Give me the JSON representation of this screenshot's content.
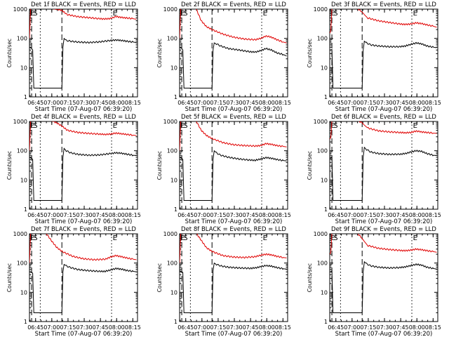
{
  "figure": {
    "x_label": "Start Time (07-Aug-07 06:39:20)",
    "y_label": "Counts/sec",
    "x_ticks": [
      "06:45",
      "07:00",
      "07:15",
      "07:30",
      "07:45",
      "08:00",
      "08:15"
    ],
    "y_ticks": [
      "1",
      "10",
      "100",
      "1000"
    ],
    "markers": [
      "E",
      "S",
      "E"
    ],
    "colors": {
      "events": "#000000",
      "lld": "#e00000",
      "axes": "#000000"
    }
  },
  "chart_data": [
    {
      "type": "line",
      "title": "Det 1f BLACK = Events, RED = LLD",
      "xlabel": "Start Time (07-Aug-07 06:39:20)",
      "ylabel": "Counts/sec",
      "xlim": [
        0,
        100
      ],
      "ylim": [
        1,
        1000
      ],
      "yscale": "log",
      "dashed_lines_min": [
        2,
        30
      ],
      "dotted_lines_min": [
        10,
        76
      ],
      "series": [
        {
          "name": "Events",
          "x": [
            0,
            2,
            3,
            4,
            30,
            31,
            32,
            34,
            38,
            45,
            55,
            65,
            75,
            80,
            85,
            90,
            96,
            99
          ],
          "y": [
            50,
            45,
            40,
            2,
            2,
            50,
            100,
            85,
            80,
            75,
            72,
            76,
            85,
            88,
            85,
            80,
            75,
            72
          ]
        },
        {
          "name": "LLD",
          "x": [
            0,
            1,
            2,
            3,
            20,
            25,
            30,
            35,
            45,
            55,
            65,
            70,
            75,
            80,
            85,
            90,
            96,
            99
          ],
          "y": [
            100,
            1000,
            1100,
            1100,
            1100,
            1000,
            900,
            650,
            550,
            510,
            470,
            460,
            480,
            560,
            520,
            500,
            470,
            450
          ]
        }
      ]
    },
    {
      "type": "line",
      "title": "Det 2f BLACK = Events, RED = LLD",
      "xlabel": "Start Time (07-Aug-07 06:39:20)",
      "ylabel": "Counts/sec",
      "xlim": [
        0,
        100
      ],
      "ylim": [
        1,
        1000
      ],
      "yscale": "log",
      "dashed_lines_min": [
        2,
        30
      ],
      "dotted_lines_min": [
        10,
        76
      ],
      "series": [
        {
          "name": "Events",
          "x": [
            0,
            2,
            3,
            4,
            30,
            31,
            32,
            34,
            38,
            45,
            55,
            65,
            70,
            75,
            80,
            85,
            90,
            96,
            99
          ],
          "y": [
            50,
            45,
            40,
            2,
            2,
            40,
            70,
            65,
            55,
            45,
            40,
            35,
            34,
            38,
            45,
            40,
            32,
            28,
            25
          ]
        },
        {
          "name": "LLD",
          "x": [
            0,
            1,
            2,
            3,
            15,
            20,
            25,
            30,
            40,
            50,
            60,
            70,
            75,
            80,
            85,
            90,
            96,
            99
          ],
          "y": [
            100,
            1000,
            1100,
            1100,
            1100,
            400,
            250,
            200,
            140,
            110,
            95,
            90,
            100,
            120,
            110,
            90,
            75,
            70
          ]
        }
      ]
    },
    {
      "type": "line",
      "title": "Det 3f BLACK = Events, RED = LLD",
      "xlabel": "Start Time (07-Aug-07 06:39:20)",
      "ylabel": "Counts/sec",
      "xlim": [
        0,
        100
      ],
      "ylim": [
        1,
        1000
      ],
      "yscale": "log",
      "dashed_lines_min": [
        2,
        30
      ],
      "dotted_lines_min": [
        10,
        76
      ],
      "series": [
        {
          "name": "Events",
          "x": [
            0,
            1,
            2,
            3,
            30,
            31,
            32,
            34,
            38,
            45,
            55,
            65,
            70,
            75,
            80,
            85,
            90,
            96,
            99
          ],
          "y": [
            40,
            40,
            42,
            2,
            2,
            40,
            80,
            70,
            60,
            55,
            52,
            52,
            55,
            62,
            70,
            65,
            55,
            50,
            48
          ]
        },
        {
          "name": "LLD",
          "x": [
            0,
            1,
            2,
            3,
            25,
            30,
            32,
            35,
            45,
            55,
            65,
            70,
            75,
            80,
            85,
            90,
            96,
            99
          ],
          "y": [
            150,
            180,
            1100,
            1100,
            1100,
            800,
            650,
            500,
            400,
            350,
            310,
            300,
            310,
            340,
            320,
            290,
            260,
            240
          ]
        }
      ]
    },
    {
      "type": "line",
      "title": "Det 4f BLACK = Events, RED = LLD",
      "xlabel": "Start Time (07-Aug-07 06:39:20)",
      "ylabel": "Counts/sec",
      "xlim": [
        0,
        100
      ],
      "ylim": [
        1,
        1000
      ],
      "yscale": "log",
      "dashed_lines_min": [
        2,
        30
      ],
      "dotted_lines_min": [
        10,
        76
      ],
      "series": [
        {
          "name": "Events",
          "x": [
            0,
            2,
            3,
            4,
            30,
            31,
            32,
            34,
            38,
            45,
            55,
            65,
            75,
            80,
            85,
            90,
            96,
            99
          ],
          "y": [
            60,
            55,
            50,
            2,
            2,
            60,
            120,
            100,
            85,
            75,
            70,
            72,
            80,
            85,
            82,
            76,
            70,
            68
          ]
        },
        {
          "name": "LLD",
          "x": [
            0,
            1,
            2,
            3,
            20,
            25,
            30,
            35,
            45,
            55,
            65,
            70,
            75,
            80,
            85,
            90,
            96,
            99
          ],
          "y": [
            100,
            1000,
            1100,
            1100,
            1100,
            900,
            700,
            500,
            420,
            390,
            370,
            360,
            370,
            400,
            380,
            360,
            340,
            330
          ]
        }
      ]
    },
    {
      "type": "line",
      "title": "Det 5f BLACK = Events, RED = LLD",
      "xlabel": "Start Time (07-Aug-07 06:39:20)",
      "ylabel": "Counts/sec",
      "xlim": [
        0,
        100
      ],
      "ylim": [
        1,
        1000
      ],
      "yscale": "log",
      "dashed_lines_min": [
        2,
        30
      ],
      "dotted_lines_min": [
        10,
        76
      ],
      "series": [
        {
          "name": "Events",
          "x": [
            0,
            2,
            3,
            4,
            30,
            31,
            32,
            34,
            38,
            45,
            55,
            65,
            70,
            75,
            80,
            85,
            90,
            96,
            99
          ],
          "y": [
            60,
            55,
            50,
            2,
            2,
            50,
            100,
            85,
            70,
            60,
            52,
            48,
            47,
            52,
            58,
            55,
            50,
            46,
            45
          ]
        },
        {
          "name": "LLD",
          "x": [
            0,
            1,
            2,
            3,
            15,
            20,
            25,
            30,
            40,
            50,
            60,
            70,
            75,
            80,
            85,
            90,
            96,
            99
          ],
          "y": [
            100,
            1000,
            1100,
            1100,
            1100,
            500,
            330,
            260,
            190,
            160,
            150,
            145,
            150,
            175,
            165,
            150,
            140,
            135
          ]
        }
      ]
    },
    {
      "type": "line",
      "title": "Det 6f BLACK = Events, RED = LLD",
      "xlabel": "Start Time (07-Aug-07 06:39:20)",
      "ylabel": "Counts/sec",
      "xlim": [
        0,
        100
      ],
      "ylim": [
        1,
        1000
      ],
      "yscale": "log",
      "dashed_lines_min": [
        2,
        30
      ],
      "dotted_lines_min": [
        10,
        76
      ],
      "series": [
        {
          "name": "Events",
          "x": [
            0,
            1,
            2,
            3,
            30,
            31,
            32,
            34,
            38,
            45,
            55,
            65,
            70,
            75,
            80,
            85,
            90,
            96,
            99
          ],
          "y": [
            55,
            55,
            60,
            2,
            2,
            60,
            130,
            110,
            90,
            80,
            75,
            76,
            80,
            90,
            100,
            95,
            80,
            70,
            68
          ]
        },
        {
          "name": "LLD",
          "x": [
            0,
            1,
            2,
            3,
            25,
            30,
            32,
            35,
            45,
            55,
            65,
            70,
            75,
            80,
            85,
            90,
            96,
            99
          ],
          "y": [
            250,
            280,
            1100,
            1100,
            1100,
            900,
            750,
            600,
            480,
            440,
            420,
            410,
            420,
            470,
            440,
            420,
            400,
            390
          ]
        }
      ]
    },
    {
      "type": "line",
      "title": "Det 7f BLACK = Events, RED = LLD",
      "xlabel": "Start Time (07-Aug-07 06:39:20)",
      "ylabel": "Counts/sec",
      "xlim": [
        0,
        100
      ],
      "ylim": [
        1,
        1000
      ],
      "yscale": "log",
      "dashed_lines_min": [
        2,
        30
      ],
      "dotted_lines_min": [
        10,
        76
      ],
      "series": [
        {
          "name": "Events",
          "x": [
            0,
            2,
            3,
            4,
            30,
            31,
            32,
            34,
            38,
            45,
            55,
            65,
            70,
            75,
            80,
            85,
            90,
            96,
            99
          ],
          "y": [
            50,
            48,
            45,
            2,
            2,
            50,
            90,
            80,
            70,
            60,
            55,
            52,
            52,
            58,
            65,
            62,
            56,
            52,
            50
          ]
        },
        {
          "name": "LLD",
          "x": [
            0,
            1,
            2,
            3,
            15,
            20,
            25,
            30,
            40,
            50,
            60,
            70,
            75,
            80,
            85,
            90,
            96,
            99
          ],
          "y": [
            100,
            1000,
            1100,
            1100,
            1100,
            600,
            350,
            250,
            170,
            140,
            130,
            135,
            160,
            180,
            165,
            150,
            135,
            130
          ]
        }
      ]
    },
    {
      "type": "line",
      "title": "Det 8f BLACK = Events, RED = LLD",
      "xlabel": "Start Time (07-Aug-07 06:39:20)",
      "ylabel": "Counts/sec",
      "xlim": [
        0,
        100
      ],
      "ylim": [
        1,
        1000
      ],
      "yscale": "log",
      "dashed_lines_min": [
        2,
        30
      ],
      "dotted_lines_min": [
        10,
        76
      ],
      "series": [
        {
          "name": "Events",
          "x": [
            0,
            2,
            3,
            4,
            30,
            31,
            32,
            34,
            38,
            45,
            55,
            65,
            70,
            75,
            80,
            85,
            90,
            96,
            99
          ],
          "y": [
            55,
            50,
            48,
            2,
            2,
            55,
            100,
            90,
            80,
            72,
            68,
            66,
            68,
            75,
            82,
            78,
            70,
            64,
            62
          ]
        },
        {
          "name": "LLD",
          "x": [
            0,
            1,
            2,
            3,
            15,
            20,
            25,
            30,
            40,
            50,
            60,
            70,
            75,
            80,
            85,
            90,
            96,
            99
          ],
          "y": [
            100,
            1000,
            1100,
            1100,
            1100,
            600,
            330,
            250,
            180,
            160,
            155,
            165,
            185,
            200,
            190,
            170,
            155,
            150
          ]
        }
      ]
    },
    {
      "type": "line",
      "title": "Det 9f BLACK = Events, RED = LLD",
      "xlabel": "Start Time (07-Aug-07 06:39:20)",
      "ylabel": "Counts/sec",
      "xlim": [
        0,
        100
      ],
      "ylim": [
        1,
        1000
      ],
      "yscale": "log",
      "dashed_lines_min": [
        2,
        30
      ],
      "dotted_lines_min": [
        10,
        76
      ],
      "series": [
        {
          "name": "Events",
          "x": [
            0,
            1,
            2,
            3,
            30,
            31,
            32,
            34,
            38,
            45,
            55,
            65,
            70,
            75,
            80,
            85,
            90,
            96,
            99
          ],
          "y": [
            50,
            50,
            55,
            2,
            2,
            50,
            110,
            95,
            80,
            72,
            68,
            70,
            74,
            82,
            90,
            85,
            72,
            65,
            62
          ]
        },
        {
          "name": "LLD",
          "x": [
            0,
            1,
            2,
            3,
            25,
            30,
            32,
            35,
            45,
            55,
            65,
            70,
            75,
            80,
            85,
            90,
            96,
            99
          ],
          "y": [
            200,
            230,
            1100,
            1100,
            1100,
            700,
            550,
            400,
            320,
            290,
            270,
            265,
            275,
            300,
            285,
            265,
            245,
            235
          ]
        }
      ]
    }
  ]
}
